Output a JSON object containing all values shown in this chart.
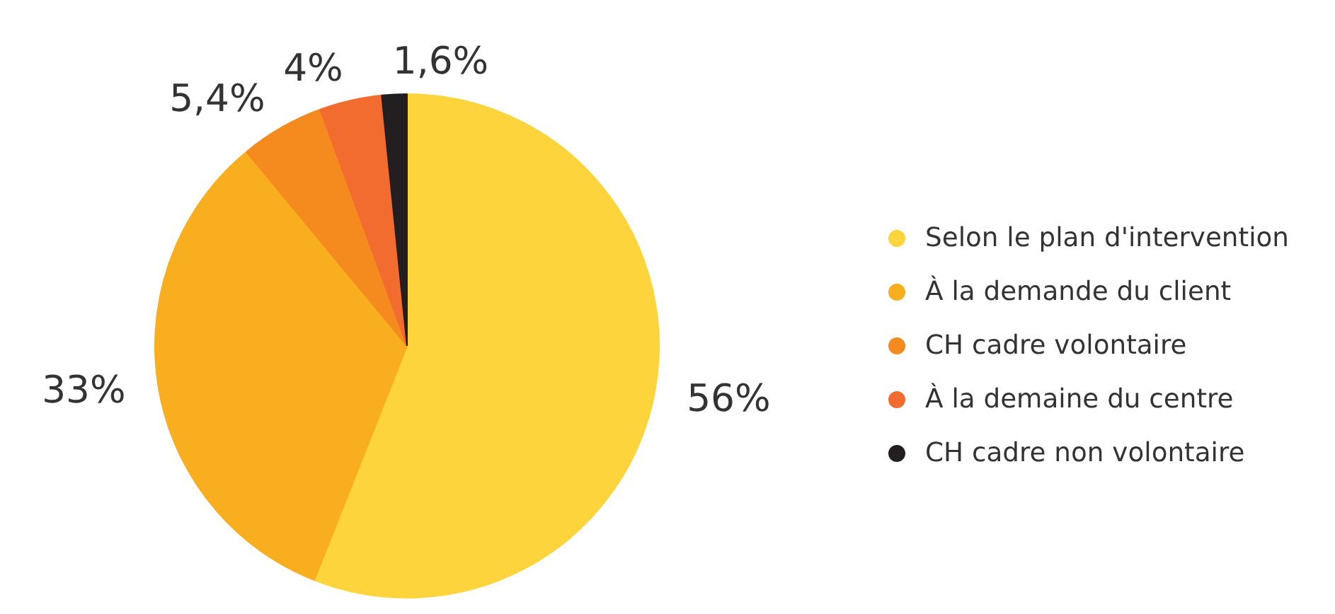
{
  "chart_data": {
    "type": "pie",
    "categories": [
      "Selon le plan d'intervention",
      "À la demande du client",
      "CH cadre volontaire",
      "À la demaine du centre",
      "CH cadre non volontaire"
    ],
    "values": [
      56,
      33,
      5.4,
      4,
      1.6
    ],
    "value_labels": [
      "56%",
      "33%",
      "5,4%",
      "4%",
      "1,6%"
    ],
    "colors": [
      "#fdd43b",
      "#f9ae1f",
      "#f58a1f",
      "#f26c30",
      "#231f20"
    ],
    "legend": "right"
  }
}
